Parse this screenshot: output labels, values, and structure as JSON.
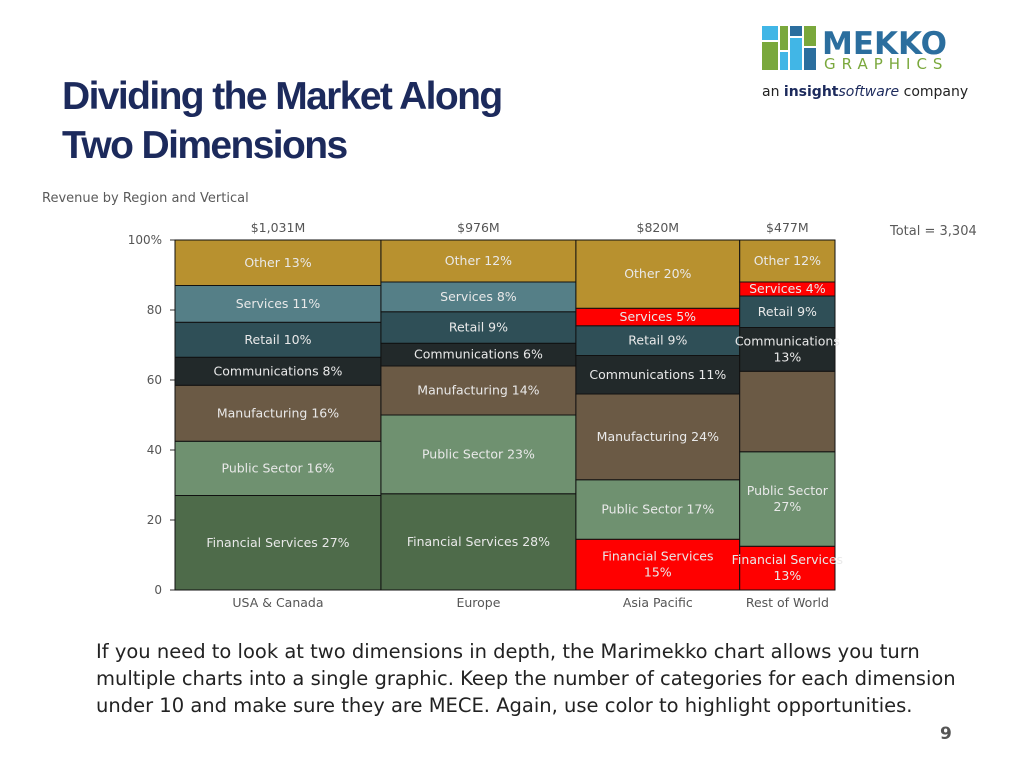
{
  "slide": {
    "title_line1": "Dividing the Market Along",
    "title_line2": "Two Dimensions",
    "subtitle": "Revenue by Region and Vertical",
    "total_label": "Total = 3,304",
    "body_text": "If you need to look at two dimensions in depth, the Marimekko chart allows you turn multiple charts into a single graphic.  Keep the number of categories for each dimension under 10 and make sure they are MECE.   Again, use color to highlight opportunities.",
    "page_number": "9"
  },
  "logo": {
    "name": "MEKKO",
    "name2": "GRAPHICS",
    "tagline_prefix": "an",
    "tagline_brand1": "insight",
    "tagline_brand2": "software",
    "tagline_suffix": "company",
    "icon": "mekko-grid-logo",
    "colors": [
      "#2b6e9e",
      "#7aa83c",
      "#41b6e6",
      "#1c2a5c"
    ]
  },
  "chart_data": {
    "type": "marimekko",
    "title": "Revenue by Region and Vertical",
    "total": "Total = 3,304",
    "y_ticks": [
      "0",
      "20",
      "40",
      "60",
      "80",
      "100%"
    ],
    "ylim": [
      0,
      100
    ],
    "columns": [
      {
        "name": "USA & Canada",
        "total_label": "$1,031M",
        "width_value": 1031,
        "segments": [
          {
            "name": "Financial Services",
            "value": 27,
            "label": "Financial Services 27%"
          },
          {
            "name": "Public Sector",
            "value": 15.5,
            "label": "Public Sector 16%"
          },
          {
            "name": "Manufacturing",
            "value": 16,
            "label": "Manufacturing 16%"
          },
          {
            "name": "Communications",
            "value": 8,
            "label": "Communications 8%"
          },
          {
            "name": "Retail",
            "value": 10,
            "label": "Retail 10%"
          },
          {
            "name": "Services",
            "value": 10.5,
            "label": "Services 11%"
          },
          {
            "name": "Other",
            "value": 13,
            "label": "Other 13%"
          }
        ]
      },
      {
        "name": "Europe",
        "total_label": "$976M",
        "width_value": 976,
        "segments": [
          {
            "name": "Financial Services",
            "value": 27.5,
            "label": "Financial Services 28%"
          },
          {
            "name": "Public Sector",
            "value": 22.5,
            "label": "Public Sector 23%"
          },
          {
            "name": "Manufacturing",
            "value": 14,
            "label": "Manufacturing 14%"
          },
          {
            "name": "Communications",
            "value": 6.5,
            "label": "Communications 6%"
          },
          {
            "name": "Retail",
            "value": 9,
            "label": "Retail 9%"
          },
          {
            "name": "Services",
            "value": 8.5,
            "label": "Services 8%"
          },
          {
            "name": "Other",
            "value": 12,
            "label": "Other 12%"
          }
        ]
      },
      {
        "name": "Asia Pacific",
        "total_label": "$820M",
        "width_value": 820,
        "segments": [
          {
            "name": "Financial Services",
            "value": 14.5,
            "label": "Financial Services 15%"
          },
          {
            "name": "Public Sector",
            "value": 17,
            "label": "Public Sector 17%"
          },
          {
            "name": "Manufacturing",
            "value": 24.5,
            "label": "Manufacturing 24%"
          },
          {
            "name": "Communications",
            "value": 11,
            "label": "Communications 11%"
          },
          {
            "name": "Retail",
            "value": 8.5,
            "label": "Retail 9%"
          },
          {
            "name": "Services",
            "value": 5,
            "label": "Services 5%"
          },
          {
            "name": "Other",
            "value": 19.5,
            "label": "Other 20%"
          }
        ]
      },
      {
        "name": "Rest of World",
        "total_label": "$477M",
        "width_value": 477,
        "segments": [
          {
            "name": "Financial Services",
            "value": 12.5,
            "label": "Financial Services 13%"
          },
          {
            "name": "Public Sector",
            "value": 27,
            "label": "Public Sector 27%"
          },
          {
            "name": "Manufacturing",
            "value": 23,
            "label": ""
          },
          {
            "name": "Communications",
            "value": 12.5,
            "label": "Communications 13%"
          },
          {
            "name": "Retail",
            "value": 9,
            "label": "Retail 9%"
          },
          {
            "name": "Services",
            "value": 4,
            "label": "Services 4%"
          },
          {
            "name": "Other",
            "value": 12,
            "label": "Other 12%"
          }
        ]
      }
    ],
    "colors": {
      "Financial Services": "#4e6b4a",
      "Public Sector": "#6f9170",
      "Manufacturing": "#6b5a45",
      "Communications": "#22292a",
      "Retail": "#2f4f57",
      "Services": "#557f87",
      "Other": "#b8912f",
      "highlight": "#ff0000"
    },
    "highlighted": [
      {
        "column": "Asia Pacific",
        "segment": "Financial Services"
      },
      {
        "column": "Asia Pacific",
        "segment": "Services"
      },
      {
        "column": "Rest of World",
        "segment": "Financial Services"
      },
      {
        "column": "Rest of World",
        "segment": "Services"
      }
    ]
  }
}
